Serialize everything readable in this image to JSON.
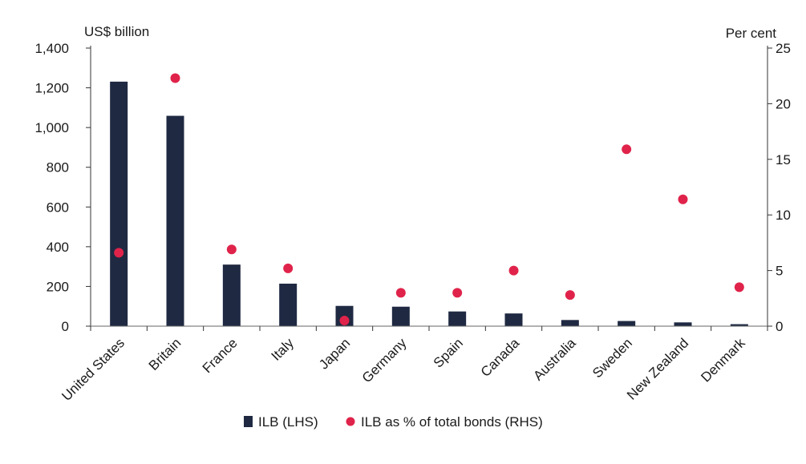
{
  "chart_data": {
    "type": "bar",
    "categories": [
      "United States",
      "Britain",
      "France",
      "Italy",
      "Japan",
      "Germany",
      "Spain",
      "Canada",
      "Australia",
      "Sweden",
      "New Zealand",
      "Denmark"
    ],
    "left_axis": {
      "label": "US$ billion",
      "range": [
        0,
        1400
      ],
      "ticks": [
        0,
        200,
        400,
        600,
        800,
        1000,
        1200,
        1400
      ],
      "tick_labels": [
        "0",
        "200",
        "400",
        "600",
        "800",
        "1,000",
        "1,200",
        "1,400"
      ]
    },
    "right_axis": {
      "label": "Per cent",
      "range": [
        0,
        25
      ],
      "ticks": [
        0,
        5,
        10,
        15,
        20,
        25
      ],
      "tick_labels": [
        "0",
        "5",
        "10",
        "15",
        "20",
        "25"
      ]
    },
    "series": [
      {
        "name": "ILB (LHS)",
        "type": "bar",
        "axis": "left",
        "color": "#1f2942",
        "values": [
          1231,
          1059,
          310,
          214,
          102,
          98,
          74,
          64,
          31,
          26,
          19,
          10
        ]
      },
      {
        "name": "ILB as % of total bonds (RHS)",
        "type": "scatter",
        "axis": "right",
        "color": "#e0234a",
        "values": [
          6.6,
          22.3,
          6.9,
          5.2,
          0.5,
          3.0,
          3.0,
          5.0,
          2.8,
          15.9,
          11.4,
          3.5
        ]
      }
    ],
    "grid": false,
    "legend_placement": "bottom"
  }
}
